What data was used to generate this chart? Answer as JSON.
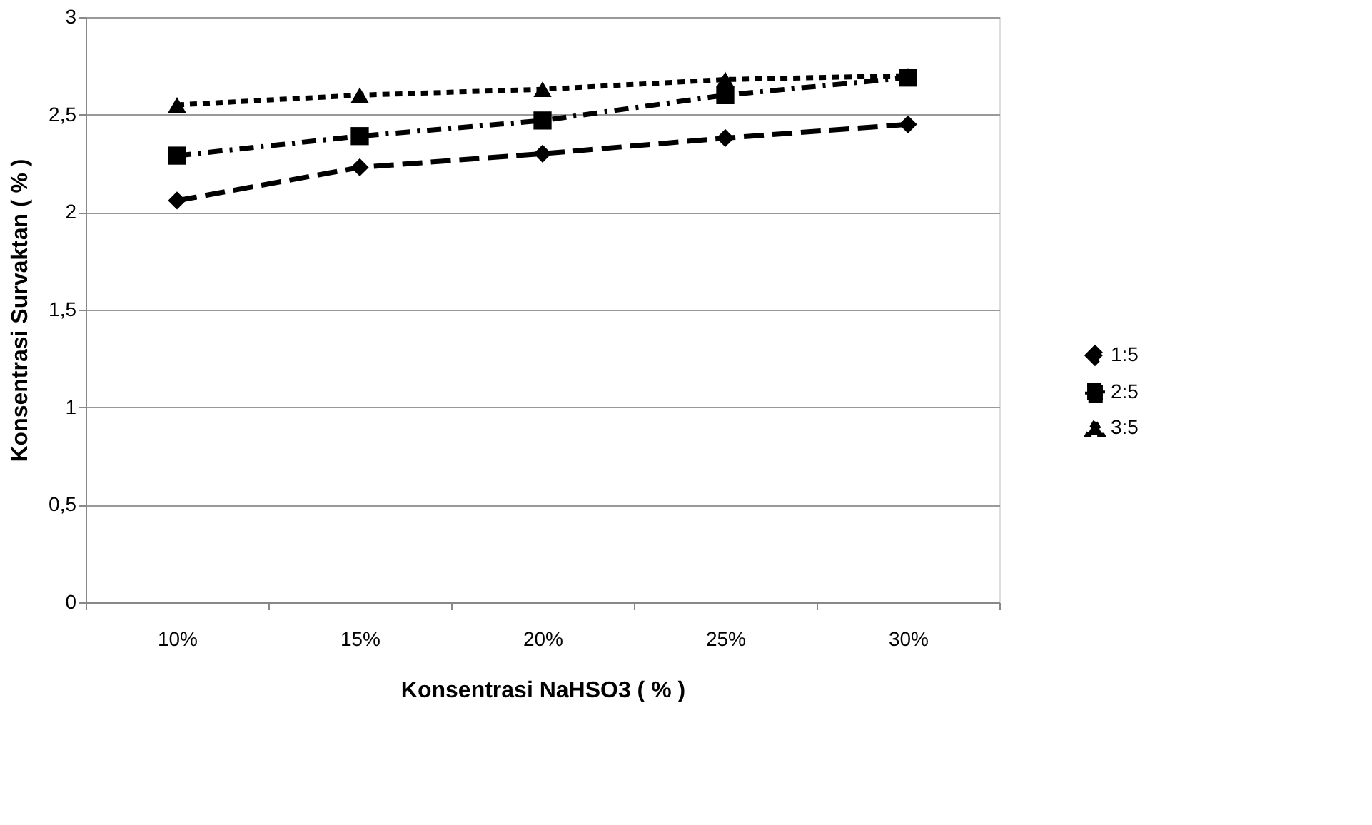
{
  "chart_data": {
    "type": "line",
    "xlabel": "Konsentrasi NaHSO3 ( % )",
    "ylabel": "Konsentrasi  Survaktan ( % )",
    "categories": [
      "10%",
      "15%",
      "20%",
      "25%",
      "30%"
    ],
    "series": [
      {
        "name": "1:5",
        "color": "#000000",
        "marker": "diamond",
        "line_style": "dashed",
        "values": [
          2.06,
          2.23,
          2.3,
          2.38,
          2.45
        ]
      },
      {
        "name": "2:5",
        "color": "#000000",
        "marker": "square",
        "line_style": "dashed",
        "values": [
          2.29,
          2.39,
          2.47,
          2.6,
          2.69
        ]
      },
      {
        "name": "3:5",
        "color": "#000000",
        "marker": "triangle",
        "line_style": "dashed",
        "values": [
          2.55,
          2.6,
          2.63,
          2.68,
          2.7
        ]
      }
    ],
    "ylim": [
      0,
      3
    ],
    "yticks": [
      {
        "value": 0,
        "label": "0"
      },
      {
        "value": 0.5,
        "label": "0,5"
      },
      {
        "value": 1,
        "label": "1"
      },
      {
        "value": 1.5,
        "label": "1,5"
      },
      {
        "value": 2,
        "label": "2"
      },
      {
        "value": 2.5,
        "label": "2,5"
      },
      {
        "value": 3,
        "label": "3"
      }
    ],
    "grid": "y",
    "legend": "right"
  }
}
